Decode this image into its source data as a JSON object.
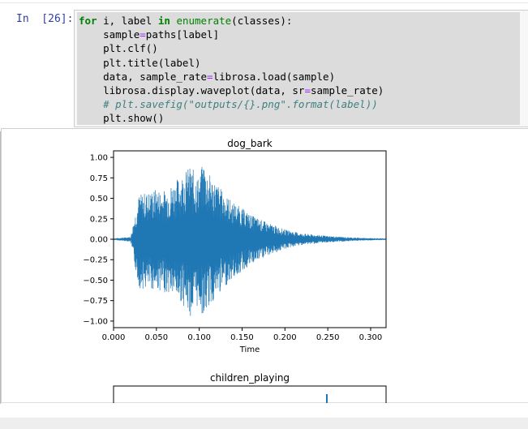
{
  "cell": {
    "prompt": "In  [26]:",
    "code_lines": [
      [
        {
          "t": "for",
          "c": "kw"
        },
        {
          "t": " i, label "
        },
        {
          "t": "in",
          "c": "kw"
        },
        {
          "t": " "
        },
        {
          "t": "enumerate",
          "c": "bi"
        },
        {
          "t": "(classes):"
        }
      ],
      [
        {
          "t": "    sample"
        },
        {
          "t": "=",
          "c": "op"
        },
        {
          "t": "paths[label]"
        }
      ],
      [
        {
          "t": "    plt.clf()"
        }
      ],
      [
        {
          "t": "    plt.title(label)"
        }
      ],
      [
        {
          "t": "    data, sample_rate"
        },
        {
          "t": "=",
          "c": "op"
        },
        {
          "t": "librosa.load(sample)"
        }
      ],
      [
        {
          "t": "    librosa.display.waveplot(data, sr"
        },
        {
          "t": "=",
          "c": "op"
        },
        {
          "t": "sample_rate)"
        }
      ],
      [
        {
          "t": "    "
        },
        {
          "t": "# plt.savefig(\"outputs/{}.png\".format(label))",
          "c": "cm"
        }
      ],
      [
        {
          "t": "    plt.show()"
        }
      ]
    ]
  },
  "chart_data": [
    {
      "type": "line",
      "title": "dog_bark",
      "xlabel": "Time",
      "ylabel": "",
      "xlim": [
        0.0,
        0.318
      ],
      "ylim": [
        -1.08,
        1.08
      ],
      "x_ticks": [
        "0.000",
        "0.050",
        "0.100",
        "0.150",
        "0.200",
        "0.250",
        "0.300"
      ],
      "x_tick_values": [
        0.0,
        0.05,
        0.1,
        0.15,
        0.2,
        0.25,
        0.3
      ],
      "y_ticks": [
        "1.00",
        "0.75",
        "0.50",
        "0.25",
        "0.00",
        "−0.25",
        "−0.50",
        "−0.75",
        "−1.00"
      ],
      "y_tick_values": [
        1.0,
        0.75,
        0.5,
        0.25,
        0.0,
        -0.25,
        -0.5,
        -0.75,
        -1.0
      ],
      "color": "#1f77b4",
      "envelope": {
        "t": [
          0.0,
          0.02,
          0.025,
          0.03,
          0.04,
          0.05,
          0.06,
          0.07,
          0.08,
          0.09,
          0.1,
          0.105,
          0.11,
          0.12,
          0.13,
          0.14,
          0.15,
          0.16,
          0.18,
          0.2,
          0.22,
          0.25,
          0.28,
          0.318
        ],
        "upper": [
          0.01,
          0.03,
          0.3,
          0.55,
          0.58,
          0.62,
          0.6,
          0.7,
          0.8,
          0.9,
          0.75,
          0.98,
          0.82,
          0.7,
          0.55,
          0.45,
          0.38,
          0.3,
          0.2,
          0.12,
          0.07,
          0.04,
          0.02,
          0.01
        ],
        "lower": [
          -0.01,
          -0.03,
          -0.35,
          -0.6,
          -0.62,
          -0.62,
          -0.65,
          -0.7,
          -0.78,
          -0.95,
          -0.8,
          -0.98,
          -0.85,
          -0.72,
          -0.58,
          -0.48,
          -0.4,
          -0.32,
          -0.2,
          -0.12,
          -0.07,
          -0.04,
          -0.02,
          -0.01
        ]
      }
    },
    {
      "type": "line",
      "title": "children_playing",
      "xlabel": "",
      "ylabel": "",
      "color": "#1f77b4"
    }
  ]
}
